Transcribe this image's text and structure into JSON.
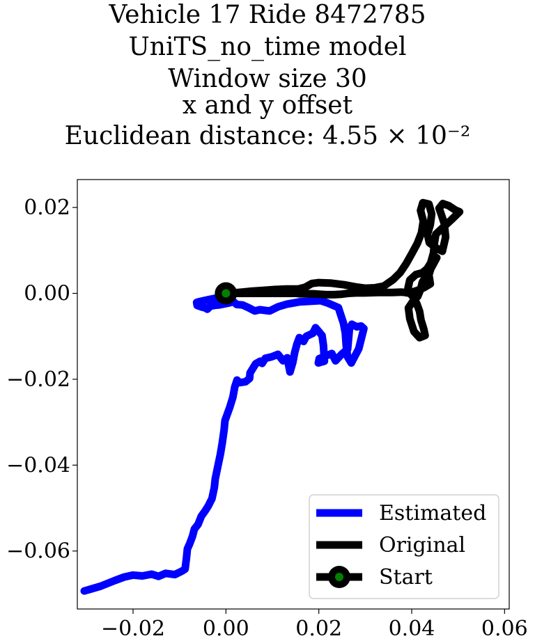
{
  "chart_data": {
    "type": "line",
    "title_lines": [
      "Vehicle 17 Ride 8472785",
      "UniTS_no_time model",
      "Window size 30",
      "x and y offset",
      "Euclidean distance: 4.55 × 10⁻²"
    ],
    "xlabel": "",
    "ylabel": "",
    "xlim": [
      -0.032,
      0.061
    ],
    "ylim": [
      -0.0735,
      0.0265
    ],
    "x_ticks": [
      -0.02,
      0.0,
      0.02,
      0.04,
      0.06
    ],
    "x_tick_labels": [
      "−0.02",
      "0.00",
      "0.02",
      "0.04",
      "0.06"
    ],
    "y_ticks": [
      0.02,
      0.0,
      -0.02,
      -0.04,
      -0.06
    ],
    "y_tick_labels": [
      "0.02",
      "0.00",
      "−0.02",
      "−0.04",
      "−0.06"
    ],
    "grid": false,
    "legend_position": "lower-right",
    "series": [
      {
        "name": "Estimated",
        "color": "#0000ff",
        "x": [
          -0.0305,
          -0.027,
          -0.024,
          -0.022,
          -0.02,
          -0.018,
          -0.016,
          -0.0145,
          -0.013,
          -0.011,
          -0.0095,
          -0.0088,
          -0.0085,
          -0.0083,
          -0.0078,
          -0.0072,
          -0.0068,
          -0.006,
          -0.0053,
          -0.0045,
          -0.0038,
          -0.003,
          -0.0025,
          -0.0023,
          -0.0018,
          -0.0012,
          -0.0008,
          -0.0004,
          -0.0002,
          0.0008,
          0.0015,
          0.0019,
          0.0024,
          0.0029,
          0.0042,
          0.0051,
          0.0052,
          0.0064,
          0.0074,
          0.0078,
          0.0085,
          0.0098,
          0.0112,
          0.0123,
          0.0132,
          0.0138,
          0.0144,
          0.0148,
          0.0153,
          0.0158,
          0.0167,
          0.0173,
          0.0187,
          0.0193,
          0.0207,
          0.021,
          0.0212,
          0.0199,
          0.0201,
          0.0228,
          0.0236,
          0.0249,
          0.0262,
          0.0266,
          0.0271,
          0.0282,
          0.0291,
          0.0297,
          0.0286,
          0.027,
          0.0262,
          0.0259,
          0.0257,
          0.0253,
          0.0242,
          0.0218,
          0.0204,
          0.0188,
          0.0158,
          0.0132,
          0.0113,
          0.0094,
          0.0073,
          0.0062,
          0.0048,
          0.0036,
          0.0023,
          0.0016,
          0.0008,
          -0.0005,
          -0.0015,
          -0.0025,
          -0.0034,
          -0.004,
          -0.0044,
          -0.0052,
          -0.0062,
          -0.0063,
          -0.0056,
          -0.0035,
          -0.0012,
          0.0
        ],
        "y": [
          -0.0693,
          -0.0682,
          -0.0669,
          -0.0661,
          -0.0656,
          -0.0658,
          -0.0654,
          -0.0659,
          -0.0652,
          -0.0655,
          -0.0647,
          -0.0642,
          -0.0616,
          -0.0595,
          -0.0583,
          -0.0566,
          -0.0549,
          -0.0538,
          -0.0519,
          -0.0507,
          -0.0495,
          -0.0478,
          -0.0452,
          -0.0432,
          -0.0406,
          -0.0375,
          -0.0349,
          -0.0318,
          -0.0296,
          -0.0266,
          -0.0242,
          -0.0218,
          -0.0202,
          -0.0208,
          -0.0206,
          -0.0198,
          -0.0185,
          -0.0164,
          -0.0158,
          -0.0163,
          -0.0151,
          -0.0148,
          -0.0142,
          -0.0157,
          -0.015,
          -0.0183,
          -0.0161,
          -0.0138,
          -0.0118,
          -0.0103,
          -0.0112,
          -0.01,
          -0.0093,
          -0.008,
          -0.0098,
          -0.0121,
          -0.0158,
          -0.0162,
          -0.0152,
          -0.014,
          -0.0157,
          -0.0142,
          -0.013,
          -0.0082,
          -0.0072,
          -0.0078,
          -0.0076,
          -0.0082,
          -0.0129,
          -0.0162,
          -0.0148,
          -0.0122,
          -0.0092,
          -0.0069,
          -0.0033,
          -0.0022,
          -0.0017,
          -0.0018,
          -0.002,
          -0.0025,
          -0.0031,
          -0.0041,
          -0.0038,
          -0.0041,
          -0.0033,
          -0.0027,
          -0.0026,
          -0.0019,
          -0.0022,
          -0.0025,
          -0.0027,
          -0.0028,
          -0.003,
          -0.0037,
          -0.0034,
          -0.0032,
          -0.0028,
          -0.0021,
          -0.0019,
          -0.0014,
          -0.0009,
          0.0
        ]
      },
      {
        "name": "Original",
        "color": "#000000",
        "x": [
          0.0,
          0.0015,
          0.0035,
          0.0055,
          0.008,
          0.0105,
          0.013,
          0.0155,
          0.017,
          0.0185,
          0.02,
          0.0225,
          0.0255,
          0.028,
          0.03,
          0.032,
          0.034,
          0.036,
          0.0375,
          0.0388,
          0.04,
          0.0412,
          0.0421,
          0.0425,
          0.0419,
          0.0424,
          0.0437,
          0.0443,
          0.044,
          0.0434,
          0.0438,
          0.0455,
          0.0466,
          0.0473,
          0.047,
          0.0463,
          0.0459,
          0.0467,
          0.048,
          0.0494,
          0.0503,
          0.0485,
          0.0469,
          0.0452,
          0.0449,
          0.0447,
          0.0441,
          0.0433,
          0.0423,
          0.0409,
          0.0396,
          0.0392,
          0.0398,
          0.0405,
          0.0411,
          0.0417,
          0.042,
          0.0426,
          0.0429,
          0.0417,
          0.0405,
          0.0396,
          0.0393,
          0.0403,
          0.0413,
          0.0419,
          0.0423,
          0.0433,
          0.0443,
          0.0454,
          0.0443,
          0.0437,
          0.044,
          0.0426,
          0.0415,
          0.041,
          0.0404,
          0.0399,
          0.0396,
          0.0393,
          0.039,
          0.0387,
          0.0377,
          0.0358,
          0.0328,
          0.0298,
          0.028,
          0.0263,
          0.0249,
          0.0232,
          0.0216,
          0.0201,
          0.0188,
          0.0172,
          0.0161,
          0.0151,
          0.0138,
          0.0122,
          0.0107,
          0.0092,
          0.0078,
          0.0063,
          0.0048,
          0.0033,
          0.0018,
          0.0
        ],
        "y": [
          0.0,
          0.0001,
          0.0003,
          0.0005,
          0.0007,
          0.0009,
          0.001,
          0.001,
          0.0014,
          0.0023,
          0.0025,
          0.0024,
          0.002,
          0.0015,
          0.0012,
          0.0013,
          0.0017,
          0.0032,
          0.0048,
          0.0069,
          0.0092,
          0.0116,
          0.0141,
          0.0168,
          0.0193,
          0.0211,
          0.0208,
          0.0185,
          0.016,
          0.0138,
          0.0118,
          0.0104,
          0.0098,
          0.0131,
          0.0163,
          0.0186,
          0.0198,
          0.0209,
          0.0204,
          0.0194,
          0.019,
          0.0171,
          0.0155,
          0.0138,
          0.0118,
          0.0094,
          0.0071,
          0.0057,
          0.0048,
          0.0044,
          0.0031,
          0.0012,
          -0.0002,
          -0.0011,
          -0.0024,
          -0.0042,
          -0.0062,
          -0.0083,
          -0.0098,
          -0.0103,
          -0.0089,
          -0.0059,
          -0.0034,
          -0.0018,
          -0.0007,
          0.0009,
          0.0026,
          0.0044,
          0.0061,
          0.0083,
          0.0064,
          0.0043,
          0.0022,
          0.0013,
          0.0008,
          0.0006,
          0.0004,
          0.0003,
          0.0002,
          0.0001,
          0.0001,
          0.0002,
          0.0003,
          0.0002,
          0.0002,
          0.0001,
          0.0001,
          0.0,
          -0.0002,
          -0.0003,
          -0.0003,
          -0.0002,
          -0.0001,
          -0.0001,
          -0.0001,
          0.0,
          0.0,
          0.0,
          0.0,
          0.0,
          0.0,
          0.0,
          0.0,
          0.0,
          0.0,
          0.0
        ]
      }
    ],
    "start_point": {
      "name": "Start",
      "x": 0.0,
      "y": 0.0,
      "color": "#000000",
      "inner_color": "#008000"
    },
    "legend": [
      {
        "label": "Estimated",
        "kind": "line",
        "color": "#0000ff"
      },
      {
        "label": "Original",
        "kind": "line",
        "color": "#000000"
      },
      {
        "label": "Start",
        "kind": "marker-line",
        "color": "#000000",
        "inner_color": "#008000"
      }
    ]
  }
}
